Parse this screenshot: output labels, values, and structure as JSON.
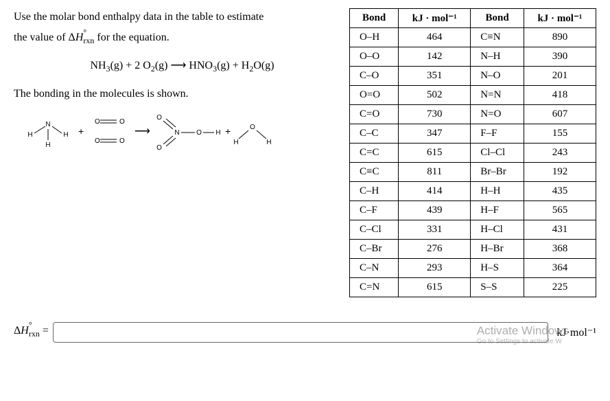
{
  "intro_line1": "Use the molar bond enthalpy data in the table to estimate",
  "intro_line2_prefix": "the value of ",
  "intro_line2_suffix": " for the equation.",
  "delta_h_label": "ΔH",
  "rxn_sub": "rxn",
  "equation_html": "NH<sub>3</sub>(g) + 2 O<sub>2</sub>(g)  ⟶  HNO<sub>3</sub>(g) + H<sub>2</sub>O(g)",
  "bonding_text": "The bonding in the molecules is shown.",
  "table": {
    "headers": [
      "Bond",
      "kJ · mol⁻¹",
      "Bond",
      "kJ · mol⁻¹"
    ],
    "rows": [
      [
        "O–H",
        "464",
        "C≡N",
        "890"
      ],
      [
        "O–O",
        "142",
        "N–H",
        "390"
      ],
      [
        "C–O",
        "351",
        "N–O",
        "201"
      ],
      [
        "O=O",
        "502",
        "N=N",
        "418"
      ],
      [
        "C=O",
        "730",
        "N=O",
        "607"
      ],
      [
        "C–C",
        "347",
        "F–F",
        "155"
      ],
      [
        "C=C",
        "615",
        "Cl–Cl",
        "243"
      ],
      [
        "C≡C",
        "811",
        "Br–Br",
        "192"
      ],
      [
        "C–H",
        "414",
        "H–H",
        "435"
      ],
      [
        "C–F",
        "439",
        "H–F",
        "565"
      ],
      [
        "C–Cl",
        "331",
        "H–Cl",
        "431"
      ],
      [
        "C–Br",
        "276",
        "H–Br",
        "368"
      ],
      [
        "C–N",
        "293",
        "H–S",
        "364"
      ],
      [
        "C=N",
        "615",
        "S–S",
        "225"
      ]
    ]
  },
  "answer_label_eq": " =",
  "unit_text": "kJ·mol⁻¹",
  "watermark_main": "Activate Windows",
  "watermark_sub": "Go to Settings to activate W",
  "diagram": {
    "nh3": {
      "N": "N",
      "H": "H"
    },
    "o2": {
      "O": "O"
    },
    "hno3": {
      "N": "N",
      "O": "O",
      "H": "H"
    },
    "h2o": {
      "H": "H",
      "O": "O"
    },
    "plus": "+",
    "arrow": "⟶"
  }
}
